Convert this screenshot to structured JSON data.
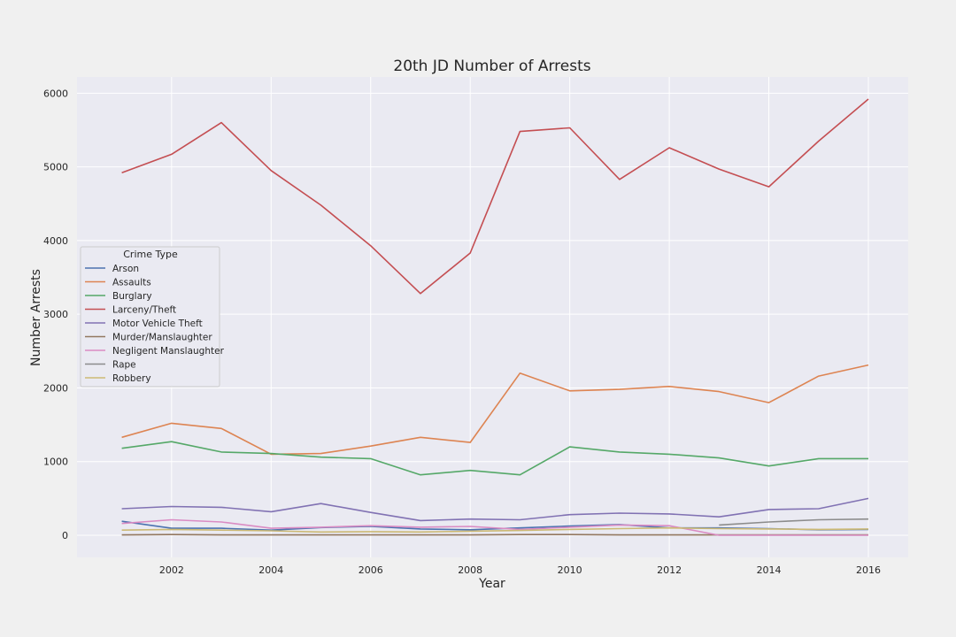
{
  "chart_data": {
    "type": "line",
    "title": "20th JD Number of Arrests",
    "xlabel": "Year",
    "ylabel": "Number Arrests",
    "xlim": [
      2000.1,
      2016.8
    ],
    "ylim": [
      -300,
      6220
    ],
    "xticks": [
      2002,
      2004,
      2006,
      2008,
      2010,
      2012,
      2014,
      2016
    ],
    "yticks": [
      0,
      1000,
      2000,
      3000,
      4000,
      5000,
      6000
    ],
    "grid": true,
    "legend": {
      "title": "Crime Type",
      "placement": "center-left"
    },
    "x": [
      2001,
      2002,
      2003,
      2004,
      2005,
      2006,
      2007,
      2008,
      2009,
      2010,
      2011,
      2012,
      2013,
      2014,
      2015,
      2016
    ],
    "series": [
      {
        "name": "Arson",
        "color": "#4c72b0",
        "values": [
          190,
          95,
          95,
          70,
          105,
          120,
          85,
          75,
          100,
          125,
          145,
          100,
          100,
          90,
          75,
          80
        ]
      },
      {
        "name": "Assaults",
        "color": "#dd8452",
        "values": [
          1330,
          1520,
          1450,
          1100,
          1110,
          1210,
          1330,
          1260,
          2200,
          1960,
          1980,
          2020,
          1950,
          1800,
          2160,
          2310
        ]
      },
      {
        "name": "Burglary",
        "color": "#55a868",
        "values": [
          1180,
          1270,
          1130,
          1110,
          1060,
          1040,
          820,
          880,
          820,
          1200,
          1130,
          1100,
          1050,
          940,
          1040,
          1040
        ]
      },
      {
        "name": "Larceny/Theft",
        "color": "#c44e52",
        "values": [
          4920,
          5170,
          5600,
          4950,
          4480,
          3930,
          3280,
          3830,
          5480,
          5530,
          4830,
          5260,
          4970,
          4730,
          5350,
          5920
        ]
      },
      {
        "name": "Motor Vehicle Theft",
        "color": "#8172b3",
        "values": [
          360,
          390,
          380,
          320,
          430,
          310,
          200,
          220,
          210,
          280,
          300,
          290,
          250,
          350,
          360,
          500
        ]
      },
      {
        "name": "Murder/Manslaughter",
        "color": "#937860",
        "values": [
          5,
          10,
          5,
          5,
          5,
          5,
          5,
          5,
          10,
          10,
          5,
          5,
          5,
          5,
          5,
          5
        ]
      },
      {
        "name": "Negligent Manslaughter",
        "color": "#da8bc3",
        "values": [
          160,
          210,
          180,
          95,
          110,
          130,
          110,
          120,
          80,
          110,
          140,
          130,
          0,
          0,
          0,
          0
        ]
      },
      {
        "name": "Rape",
        "color": "#8c8c8c",
        "values": [
          null,
          null,
          null,
          null,
          null,
          null,
          null,
          null,
          null,
          null,
          null,
          null,
          140,
          180,
          210,
          220
        ]
      },
      {
        "name": "Robbery",
        "color": "#ccb974",
        "values": [
          70,
          80,
          70,
          60,
          45,
          50,
          45,
          55,
          65,
          80,
          90,
          100,
          90,
          85,
          80,
          85
        ]
      }
    ]
  }
}
